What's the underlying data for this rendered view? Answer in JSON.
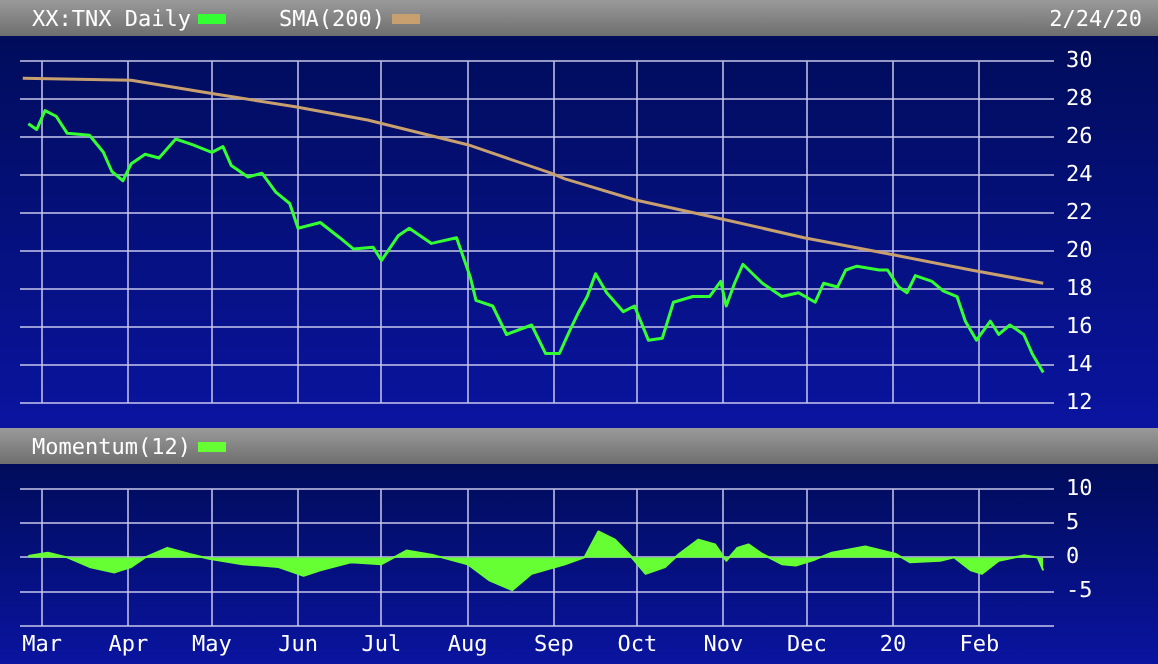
{
  "chart_data": [
    {
      "type": "line",
      "subtitle": "2/24/20",
      "legend": "top left",
      "grid": true,
      "tick_labels": "y",
      "marker": "none",
      "xlim": [
        "2019-02-21",
        "2020-02-25"
      ],
      "xticks": [
        {
          "value": "2019-03-01",
          "label": null
        },
        {
          "value": "2019-04-01",
          "label": null
        },
        {
          "value": "2019-05-01",
          "label": null
        },
        {
          "value": "2019-06-01",
          "label": null
        },
        {
          "value": "2019-07-01",
          "label": null
        },
        {
          "value": "2019-08-01",
          "label": null
        },
        {
          "value": "2019-09-01",
          "label": null
        },
        {
          "value": "2019-10-01",
          "label": null
        },
        {
          "value": "2019-11-01",
          "label": null
        },
        {
          "value": "2019-12-01",
          "label": null
        },
        {
          "value": "2020-01-01",
          "label": null
        },
        {
          "value": "2020-02-01",
          "label": null
        }
      ],
      "ylim": [
        12,
        30
      ],
      "yticks": [
        12,
        14,
        16,
        18,
        20,
        22,
        24,
        26,
        28,
        30
      ],
      "series": [
        {
          "name": "XX:TNX Daily",
          "color": "#33ff33",
          "x": [
            "2019-02-24",
            "2019-02-27",
            "2019-03-02",
            "2019-03-06",
            "2019-03-10",
            "2019-03-18",
            "2019-03-23",
            "2019-03-26",
            "2019-03-30",
            "2019-04-02",
            "2019-04-07",
            "2019-04-12",
            "2019-04-18",
            "2019-04-24",
            "2019-05-01",
            "2019-05-05",
            "2019-05-08",
            "2019-05-14",
            "2019-05-19",
            "2019-05-24",
            "2019-05-29",
            "2019-06-01",
            "2019-06-09",
            "2019-06-16",
            "2019-06-21",
            "2019-06-28",
            "2019-07-01",
            "2019-07-07",
            "2019-07-11",
            "2019-07-19",
            "2019-07-28",
            "2019-08-02",
            "2019-08-04",
            "2019-08-10",
            "2019-08-15",
            "2019-08-24",
            "2019-08-29",
            "2019-09-03",
            "2019-09-07",
            "2019-09-10",
            "2019-09-13",
            "2019-09-16",
            "2019-09-20",
            "2019-09-26",
            "2019-09-30",
            "2019-10-05",
            "2019-10-10",
            "2019-10-14",
            "2019-10-21",
            "2019-10-27",
            "2019-10-31",
            "2019-11-02",
            "2019-11-05",
            "2019-11-08",
            "2019-11-15",
            "2019-11-22",
            "2019-11-28",
            "2019-12-04",
            "2019-12-07",
            "2019-12-12",
            "2019-12-15",
            "2019-12-19",
            "2019-12-27",
            "2019-12-30",
            "2020-01-03",
            "2020-01-06",
            "2020-01-09",
            "2020-01-15",
            "2020-01-19",
            "2020-01-24",
            "2020-01-27",
            "2020-01-31",
            "2020-02-05",
            "2020-02-08",
            "2020-02-12",
            "2020-02-17",
            "2020-02-20",
            "2020-02-24"
          ],
          "values": [
            26.7,
            26.4,
            27.4,
            27.1,
            26.2,
            26.1,
            25.2,
            24.2,
            23.7,
            24.6,
            25.1,
            24.9,
            25.9,
            25.6,
            25.2,
            25.5,
            24.5,
            23.9,
            24.1,
            23.1,
            22.5,
            21.2,
            21.5,
            20.7,
            20.1,
            20.2,
            19.5,
            20.8,
            21.2,
            20.4,
            20.7,
            18.6,
            17.4,
            17.1,
            15.6,
            16.1,
            14.6,
            14.6,
            15.9,
            16.8,
            17.6,
            18.8,
            17.8,
            16.8,
            17.1,
            15.3,
            15.4,
            17.3,
            17.6,
            17.6,
            18.4,
            17.1,
            18.3,
            19.3,
            18.3,
            17.6,
            17.8,
            17.3,
            18.3,
            18.1,
            19.0,
            19.2,
            19.0,
            19.0,
            18.1,
            17.8,
            18.7,
            18.4,
            17.9,
            17.6,
            16.3,
            15.3,
            16.3,
            15.6,
            16.1,
            15.6,
            14.6,
            13.6
          ]
        },
        {
          "name": "SMA(200)",
          "color": "#c8a070",
          "x": [
            "2019-02-22",
            "2019-04-02",
            "2019-05-01",
            "2019-05-31",
            "2019-06-26",
            "2019-08-01",
            "2019-08-31",
            "2019-09-05",
            "2019-09-30",
            "2019-10-31",
            "2019-11-30",
            "2020-01-01",
            "2020-01-29",
            "2020-02-24"
          ],
          "values": [
            29.1,
            29.0,
            28.3,
            27.6,
            26.9,
            25.6,
            24.1,
            23.8,
            22.7,
            21.7,
            20.7,
            19.8,
            19.0,
            18.3
          ]
        }
      ]
    },
    {
      "type": "area",
      "legend": "top left",
      "grid": true,
      "marker": "none",
      "xlim": [
        "2019-02-21",
        "2020-02-25"
      ],
      "xticks": [
        {
          "value": "2019-03-01",
          "label": "Mar"
        },
        {
          "value": "2019-04-01",
          "label": "Apr"
        },
        {
          "value": "2019-05-01",
          "label": "May"
        },
        {
          "value": "2019-06-01",
          "label": "Jun"
        },
        {
          "value": "2019-07-01",
          "label": "Jul"
        },
        {
          "value": "2019-08-01",
          "label": "Aug"
        },
        {
          "value": "2019-09-01",
          "label": "Sep"
        },
        {
          "value": "2019-10-01",
          "label": "Oct"
        },
        {
          "value": "2019-11-01",
          "label": "Nov"
        },
        {
          "value": "2019-12-01",
          "label": "Dec"
        },
        {
          "value": "2020-01-01",
          "label": "20"
        },
        {
          "value": "2020-02-01",
          "label": "Feb"
        }
      ],
      "ylim": [
        -10,
        10
      ],
      "yticks": [
        {
          "value": -10,
          "label": null
        },
        -5,
        0,
        5,
        10
      ],
      "series": [
        {
          "name": "Momentum(12)",
          "color": "#66ff33",
          "x": [
            "2019-02-24",
            "2019-03-03",
            "2019-03-10",
            "2019-03-18",
            "2019-03-27",
            "2019-04-02",
            "2019-04-07",
            "2019-04-15",
            "2019-04-23",
            "2019-04-30",
            "2019-05-12",
            "2019-05-25",
            "2019-06-03",
            "2019-06-09",
            "2019-06-20",
            "2019-07-01",
            "2019-07-10",
            "2019-07-20",
            "2019-08-01",
            "2019-08-09",
            "2019-08-17",
            "2019-08-24",
            "2019-09-05",
            "2019-09-12",
            "2019-09-17",
            "2019-09-23",
            "2019-09-28",
            "2019-10-04",
            "2019-10-11",
            "2019-10-16",
            "2019-10-23",
            "2019-10-29",
            "2019-11-02",
            "2019-11-06",
            "2019-11-10",
            "2019-11-15",
            "2019-11-22",
            "2019-11-27",
            "2019-12-04",
            "2019-12-10",
            "2019-12-22",
            "2020-01-02",
            "2020-01-07",
            "2020-01-18",
            "2020-01-23",
            "2020-01-29",
            "2020-02-02",
            "2020-02-08",
            "2020-02-17",
            "2020-02-22",
            "2020-02-24"
          ],
          "values": [
            0.2,
            0.7,
            0,
            -1.4,
            -2.2,
            -1.4,
            0,
            1.4,
            0.5,
            -0.2,
            -1.0,
            -1.4,
            -2.7,
            -1.9,
            -0.7,
            -1.0,
            1.0,
            0.3,
            -1.0,
            -3.4,
            -4.8,
            -2.4,
            -1.0,
            0,
            3.8,
            2.6,
            0.5,
            -2.4,
            -1.4,
            0.5,
            2.6,
            1.9,
            -0.5,
            1.4,
            1.9,
            0.5,
            -1.0,
            -1.2,
            -0.3,
            0.7,
            1.6,
            0.5,
            -0.7,
            -0.5,
            0,
            -1.9,
            -2.4,
            -0.5,
            0.3,
            0,
            -1.9
          ]
        }
      ]
    }
  ]
}
